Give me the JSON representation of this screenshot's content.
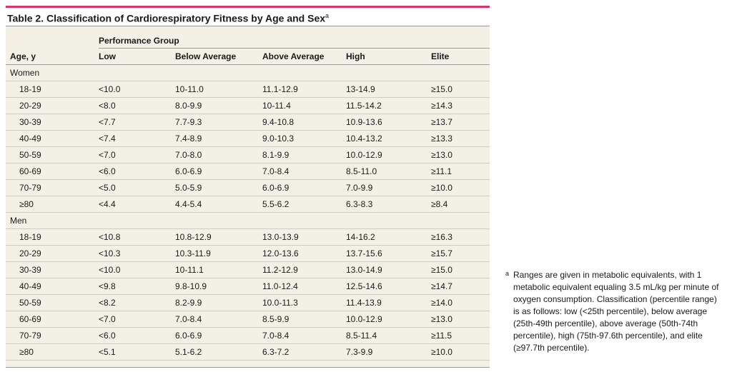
{
  "title": "Table 2. Classification of Cardiorespiratory Fitness by Age and Sex",
  "title_sup": "a",
  "header": {
    "performance_group": "Performance Group",
    "age": "Age, y",
    "columns": [
      "Low",
      "Below Average",
      "Above Average",
      "High",
      "Elite"
    ]
  },
  "groups": [
    {
      "label": "Women",
      "rows": [
        [
          "18-19",
          "<10.0",
          "10-11.0",
          "11.1-12.9",
          "13-14.9",
          "≥15.0"
        ],
        [
          "20-29",
          "<8.0",
          "8.0-9.9",
          "10-11.4",
          "11.5-14.2",
          "≥14.3"
        ],
        [
          "30-39",
          "<7.7",
          "7.7-9.3",
          "9.4-10.8",
          "10.9-13.6",
          "≥13.7"
        ],
        [
          "40-49",
          "<7.4",
          "7.4-8.9",
          "9.0-10.3",
          "10.4-13.2",
          "≥13.3"
        ],
        [
          "50-59",
          "<7.0",
          "7.0-8.0",
          "8.1-9.9",
          "10.0-12.9",
          "≥13.0"
        ],
        [
          "60-69",
          "<6.0",
          "6.0-6.9",
          "7.0-8.4",
          "8.5-11.0",
          "≥11.1"
        ],
        [
          "70-79",
          "<5.0",
          "5.0-5.9",
          "6.0-6.9",
          "7.0-9.9",
          "≥10.0"
        ],
        [
          "≥80",
          "<4.4",
          "4.4-5.4",
          "5.5-6.2",
          "6.3-8.3",
          "≥8.4"
        ]
      ]
    },
    {
      "label": "Men",
      "rows": [
        [
          "18-19",
          "<10.8",
          "10.8-12.9",
          "13.0-13.9",
          "14-16.2",
          "≥16.3"
        ],
        [
          "20-29",
          "<10.3",
          "10.3-11.9",
          "12.0-13.6",
          "13.7-15.6",
          "≥15.7"
        ],
        [
          "30-39",
          "<10.0",
          "10-11.1",
          "11.2-12.9",
          "13.0-14.9",
          "≥15.0"
        ],
        [
          "40-49",
          "<9.8",
          "9.8-10.9",
          "11.0-12.4",
          "12.5-14.6",
          "≥14.7"
        ],
        [
          "50-59",
          "<8.2",
          "8.2-9.9",
          "10.0-11.3",
          "11.4-13.9",
          "≥14.0"
        ],
        [
          "60-69",
          "<7.0",
          "7.0-8.4",
          "8.5-9.9",
          "10.0-12.9",
          "≥13.0"
        ],
        [
          "70-79",
          "<6.0",
          "6.0-6.9",
          "7.0-8.4",
          "8.5-11.4",
          "≥11.5"
        ],
        [
          "≥80",
          "<5.1",
          "5.1-6.2",
          "6.3-7.2",
          "7.3-9.9",
          "≥10.0"
        ]
      ]
    }
  ],
  "footnote": {
    "mark": "a",
    "text": "Ranges are given in metabolic equivalents, with 1 metabolic equivalent equaling 3.5 mL/kg per minute of oxygen consumption. Classification (percentile range) is as follows: low (<25th percentile), below average (25th-49th percentile), above average (50th-74th percentile), high (75th-97.6th percentile), and elite (≥97.7th percentile)."
  },
  "colors": {
    "accent_rule": "#d6336c",
    "table_bg": "#f3f1e6"
  }
}
